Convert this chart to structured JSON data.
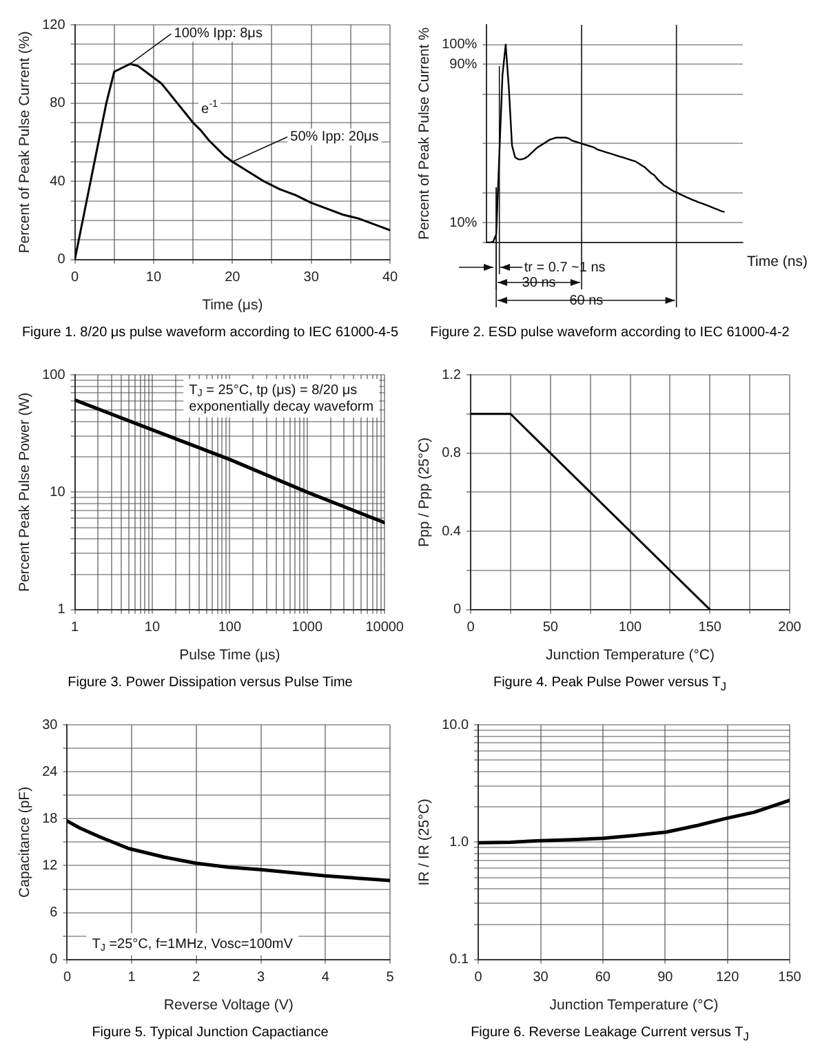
{
  "chart_data": [
    {
      "type": "line",
      "title": "Figure 1. 8/20 μs pulse waveform according to IEC 61000-4-5",
      "xlabel": "Time (μs)",
      "ylabel": "Percent of Peak Pulse Current (%)",
      "x": [
        0,
        1,
        2,
        3,
        4,
        5,
        6,
        7,
        8,
        9,
        10,
        11,
        12,
        13,
        14,
        15,
        16,
        17,
        18,
        19,
        20,
        22,
        24,
        26,
        28,
        30,
        32,
        34,
        36,
        38,
        40
      ],
      "series": [
        {
          "color": "#000000",
          "values": [
            0,
            20,
            40,
            60,
            80,
            96,
            98,
            100,
            99,
            96,
            93,
            90,
            85,
            80,
            75,
            70,
            66,
            61,
            57,
            53,
            50,
            45,
            40,
            36,
            33,
            29,
            26,
            23,
            21,
            18,
            15
          ]
        }
      ],
      "xlim": [
        0,
        40
      ],
      "xticks": [
        0,
        {
          "value": 5,
          "label": null
        },
        10,
        {
          "value": 15,
          "label": null
        },
        20,
        {
          "value": 25,
          "label": null
        },
        30,
        {
          "value": 35,
          "label": null
        },
        40
      ],
      "ylim": [
        0,
        120
      ],
      "yticks": [
        0,
        {
          "value": 10,
          "label": null
        },
        {
          "value": 20,
          "label": null
        },
        {
          "value": 30,
          "label": null
        },
        40,
        {
          "value": 50,
          "label": null
        },
        {
          "value": 60,
          "label": null
        },
        {
          "value": 70,
          "label": null
        },
        80,
        {
          "value": 90,
          "label": null
        },
        {
          "value": 100,
          "label": null
        },
        {
          "value": 110,
          "label": null
        },
        120
      ],
      "grid": true,
      "annotations": [
        {
          "text": "100% Ipp: 8μs",
          "x": 7,
          "y": 100
        },
        {
          "text": "e$^{-1}$",
          "x": 15,
          "y": 70
        },
        {
          "text": "50% Ipp: 20μs",
          "x": 20,
          "y": 50
        }
      ]
    },
    {
      "type": "line",
      "title": "Figure 2. ESD pulse waveform according to IEC 61000-4-2",
      "xlabel": "Time (ns)",
      "ylabel": "Percent of Peak Pulse Current %",
      "categories": [
        null,
        null,
        null,
        null,
        null,
        null,
        null,
        null,
        null,
        null,
        null,
        null,
        null,
        null,
        null,
        null,
        null,
        null,
        null,
        null,
        null,
        null,
        null,
        null,
        null,
        null,
        null,
        null,
        null,
        null,
        null,
        null,
        null,
        null,
        null,
        null,
        null,
        null,
        null,
        null,
        null,
        null,
        null,
        null,
        null,
        null,
        null,
        null,
        null,
        null,
        null,
        null,
        null,
        null,
        null,
        null,
        null,
        null,
        null,
        null,
        null,
        null,
        null,
        null,
        null,
        null,
        null,
        null,
        null,
        null,
        null,
        null,
        null,
        null,
        null,
        null,
        null,
        null,
        null,
        null,
        null,
        null
      ],
      "series": [
        {
          "color": "#000000",
          "values": [
            0,
            0,
            0.3,
            4,
            45,
            85,
            100,
            78,
            49,
            43,
            42,
            42,
            42.5,
            43.5,
            45,
            46.5,
            48,
            49,
            50,
            51,
            52,
            52.5,
            53,
            53,
            53,
            53,
            52.5,
            51.5,
            51,
            50.5,
            50,
            49.5,
            49,
            48.5,
            48,
            47,
            46.5,
            46,
            45.5,
            45,
            44.5,
            44,
            43.5,
            43,
            42.5,
            42,
            41.5,
            41,
            40,
            39,
            38,
            36.5,
            35,
            34,
            32,
            30.5,
            29,
            28,
            27,
            26,
            25.4,
            24.5,
            23.8,
            23,
            22.3,
            21.6,
            21,
            20.3,
            19.8,
            19.2,
            18.6,
            18,
            17.3,
            16.7,
            16,
            15.5,
            null,
            null,
            null,
            null,
            null,
            null
          ]
        }
      ],
      "ylim": [
        0,
        110
      ],
      "yticks": [
        {
          "value": 0,
          "label": null
        },
        {
          "value": 10,
          "label": "10%"
        },
        {
          "value": 25,
          "label": null
        },
        {
          "value": 50,
          "label": null
        },
        {
          "value": 75,
          "label": null
        },
        {
          "value": 90,
          "label": "90%"
        },
        {
          "value": 100,
          "label": "100%"
        }
      ],
      "grid": "y",
      "tick_labels": "y",
      "annotations": [
        "tr = 0.7 ~1 ns",
        "30 ns",
        "60 ns"
      ]
    },
    {
      "type": "line",
      "title": "Figure 3. Power Dissipation versus Pulse Time",
      "xlabel": "Pulse Time (μs)",
      "ylabel": "Percent Peak Pulse Power (W)",
      "x": [
        1,
        10,
        100,
        1000,
        10000
      ],
      "series": [
        {
          "color": "#000000",
          "values": [
            61,
            34,
            19,
            10,
            5.5
          ]
        }
      ],
      "xlim": [
        1,
        10000
      ],
      "xticks": [
        1,
        {
          "value": 2,
          "label": null
        },
        {
          "value": 3,
          "label": null
        },
        {
          "value": 4,
          "label": null
        },
        {
          "value": 5,
          "label": null
        },
        {
          "value": 6,
          "label": null
        },
        {
          "value": 7,
          "label": null
        },
        {
          "value": 8,
          "label": null
        },
        {
          "value": 9,
          "label": null
        },
        10,
        {
          "value": 20,
          "label": null
        },
        {
          "value": 30,
          "label": null
        },
        {
          "value": 40,
          "label": null
        },
        {
          "value": 50,
          "label": null
        },
        {
          "value": 60,
          "label": null
        },
        {
          "value": 70,
          "label": null
        },
        {
          "value": 80,
          "label": null
        },
        {
          "value": 90,
          "label": null
        },
        100,
        {
          "value": 200,
          "label": null
        },
        {
          "value": 300,
          "label": null
        },
        {
          "value": 400,
          "label": null
        },
        {
          "value": 500,
          "label": null
        },
        {
          "value": 600,
          "label": null
        },
        {
          "value": 700,
          "label": null
        },
        {
          "value": 800,
          "label": null
        },
        {
          "value": 900,
          "label": null
        },
        1000,
        {
          "value": 2000,
          "label": null
        },
        {
          "value": 3000,
          "label": null
        },
        {
          "value": 4000,
          "label": null
        },
        {
          "value": 5000,
          "label": null
        },
        {
          "value": 6000,
          "label": null
        },
        {
          "value": 7000,
          "label": null
        },
        {
          "value": 8000,
          "label": null
        },
        {
          "value": 9000,
          "label": null
        },
        10000
      ],
      "ylim": [
        1,
        100
      ],
      "yticks": [
        1,
        {
          "value": 2,
          "label": null
        },
        {
          "value": 3,
          "label": null
        },
        {
          "value": 4,
          "label": null
        },
        {
          "value": 5,
          "label": null
        },
        {
          "value": 6,
          "label": null
        },
        {
          "value": 7,
          "label": null
        },
        {
          "value": 8,
          "label": null
        },
        {
          "value": 9,
          "label": null
        },
        10,
        {
          "value": 20,
          "label": null
        },
        {
          "value": 30,
          "label": null
        },
        {
          "value": 40,
          "label": null
        },
        {
          "value": 50,
          "label": null
        },
        {
          "value": 60,
          "label": null
        },
        {
          "value": 70,
          "label": null
        },
        {
          "value": 80,
          "label": null
        },
        {
          "value": 90,
          "label": null
        },
        100
      ],
      "grid": true,
      "log": "xy",
      "annotations": [
        "T$_{J}$ = 25°C, tp (μs) = 8/20 μs",
        "exponentially decay waveform"
      ]
    },
    {
      "type": "line",
      "title": "Figure 4. Peak Pulse Power versus T$_{J}$",
      "xlabel": "Junction Temperature (°C)",
      "ylabel": "Ppp / Ppp (25°C)",
      "x": [
        0,
        25,
        150
      ],
      "series": [
        {
          "color": "#000000",
          "values": [
            1,
            1,
            0
          ]
        }
      ],
      "xlim": [
        0,
        200
      ],
      "xticks": [
        0,
        {
          "value": 25,
          "label": null
        },
        50,
        {
          "value": 75,
          "label": null
        },
        100,
        {
          "value": 125,
          "label": null
        },
        150,
        {
          "value": 175,
          "label": null
        },
        200
      ],
      "ylim": [
        0,
        1.2
      ],
      "yticks": [
        0,
        {
          "value": 0.2,
          "label": null
        },
        0.4,
        {
          "value": 0.6,
          "label": null
        },
        0.8,
        {
          "value": 1,
          "label": null
        },
        1.2
      ],
      "grid": true
    },
    {
      "type": "line",
      "title": "Figure 5. Typical Junction Capactiance",
      "xlabel": "Reverse Voltage (V)",
      "ylabel": "Capacitance (pF)",
      "x": [
        0,
        0.2,
        0.5,
        0.95,
        1.5,
        2,
        2.5,
        3,
        3.5,
        4,
        4.5,
        5
      ],
      "series": [
        {
          "color": "#000000",
          "values": [
            17.7,
            16.8,
            15.7,
            14.2,
            13.1,
            12.3,
            11.8,
            11.5,
            11.1,
            10.7,
            10.4,
            10.1
          ]
        }
      ],
      "xlim": [
        0,
        5
      ],
      "xticks": [
        0,
        1,
        2,
        3,
        4,
        5
      ],
      "ylim": [
        0,
        30
      ],
      "yticks": [
        0,
        {
          "value": 3,
          "label": null
        },
        6,
        {
          "value": 9,
          "label": null
        },
        12,
        {
          "value": 15,
          "label": null
        },
        18,
        {
          "value": 21,
          "label": null
        },
        24,
        {
          "value": 27,
          "label": null
        },
        30
      ],
      "grid": true,
      "annotations": [
        "T$_{J}$ =25°C, f=1MHz, Vosc=100mV"
      ]
    },
    {
      "type": "line",
      "title": "Figure 6. Reverse Leakage Current versus T$_{J}$",
      "xlabel": "Junction Temperature (°C)",
      "ylabel": "IR / IR (25°C)",
      "x": [
        0,
        15.3,
        30,
        45.6,
        60,
        74.8,
        90.5,
        105,
        119.7,
        133,
        150
      ],
      "series": [
        {
          "color": "#000000",
          "values": [
            0.99,
            1,
            1.03,
            1.05,
            1.08,
            1.14,
            1.22,
            1.38,
            1.6,
            1.8,
            2.27
          ]
        }
      ],
      "xlim": [
        0,
        150
      ],
      "xticks": [
        0,
        30,
        60,
        90,
        120,
        150
      ],
      "ylim": [
        0.1,
        10
      ],
      "yticks": [
        {
          "value": 0.1,
          "label": "0.1"
        },
        {
          "value": 0.2,
          "label": null
        },
        {
          "value": 0.3,
          "label": null
        },
        {
          "value": 0.4,
          "label": null
        },
        {
          "value": 0.5,
          "label": null
        },
        {
          "value": 0.6,
          "label": null
        },
        {
          "value": 0.7,
          "label": null
        },
        {
          "value": 0.8,
          "label": null
        },
        {
          "value": 0.9,
          "label": null
        },
        {
          "value": 1,
          "label": "1.0"
        },
        {
          "value": 2,
          "label": null
        },
        {
          "value": 3,
          "label": null
        },
        {
          "value": 4,
          "label": null
        },
        {
          "value": 5,
          "label": null
        },
        {
          "value": 6,
          "label": null
        },
        {
          "value": 7,
          "label": null
        },
        {
          "value": 8,
          "label": null
        },
        {
          "value": 9,
          "label": null
        },
        {
          "value": 10,
          "label": "10.0"
        }
      ],
      "grid": true,
      "log": "y"
    }
  ]
}
